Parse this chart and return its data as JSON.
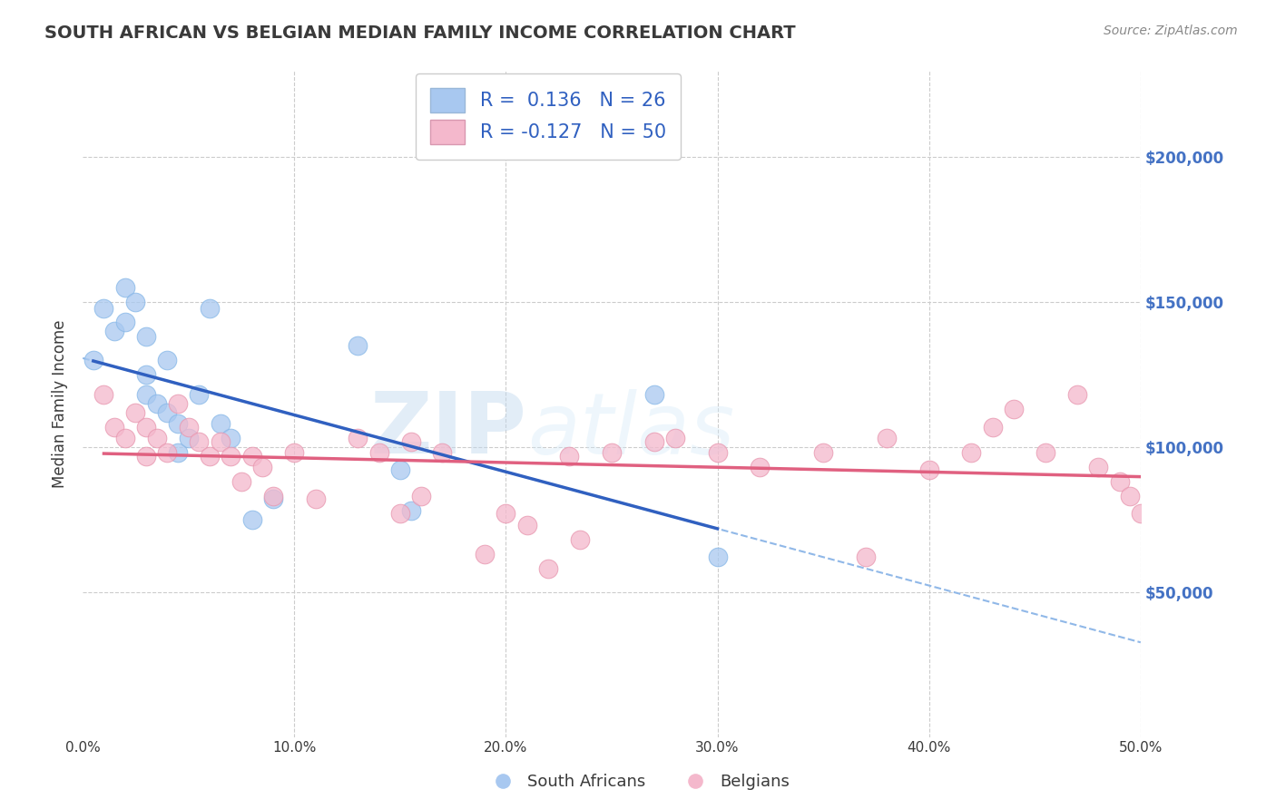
{
  "title": "SOUTH AFRICAN VS BELGIAN MEDIAN FAMILY INCOME CORRELATION CHART",
  "source": "Source: ZipAtlas.com",
  "ylabel": "Median Family Income",
  "xlim": [
    0.0,
    0.5
  ],
  "ylim": [
    0,
    230000
  ],
  "yticks": [
    0,
    50000,
    100000,
    150000,
    200000
  ],
  "ytick_labels": [
    "",
    "$50,000",
    "$100,000",
    "$150,000",
    "$200,000"
  ],
  "xtick_labels": [
    "0.0%",
    "10.0%",
    "20.0%",
    "30.0%",
    "40.0%",
    "50.0%"
  ],
  "xticks": [
    0.0,
    0.1,
    0.2,
    0.3,
    0.4,
    0.5
  ],
  "r_blue": 0.136,
  "n_blue": 26,
  "r_pink": -0.127,
  "n_pink": 50,
  "blue_color": "#a8c8f0",
  "pink_color": "#f4b8cc",
  "blue_line_color": "#3060c0",
  "pink_line_color": "#e06080",
  "blue_dash_color": "#90b8e8",
  "title_color": "#3a3a3a",
  "source_color": "#888888",
  "blue_scatter_x": [
    0.005,
    0.01,
    0.015,
    0.02,
    0.02,
    0.025,
    0.03,
    0.03,
    0.03,
    0.035,
    0.04,
    0.04,
    0.045,
    0.045,
    0.05,
    0.055,
    0.06,
    0.065,
    0.07,
    0.08,
    0.09,
    0.13,
    0.15,
    0.155,
    0.27,
    0.3
  ],
  "blue_scatter_y": [
    130000,
    148000,
    140000,
    155000,
    143000,
    150000,
    138000,
    125000,
    118000,
    115000,
    130000,
    112000,
    108000,
    98000,
    103000,
    118000,
    148000,
    108000,
    103000,
    75000,
    82000,
    135000,
    92000,
    78000,
    118000,
    62000
  ],
  "pink_scatter_x": [
    0.01,
    0.015,
    0.02,
    0.025,
    0.03,
    0.03,
    0.035,
    0.04,
    0.045,
    0.05,
    0.055,
    0.06,
    0.065,
    0.07,
    0.075,
    0.08,
    0.085,
    0.09,
    0.1,
    0.11,
    0.13,
    0.14,
    0.15,
    0.155,
    0.16,
    0.17,
    0.19,
    0.2,
    0.21,
    0.22,
    0.23,
    0.235,
    0.25,
    0.27,
    0.28,
    0.3,
    0.32,
    0.35,
    0.37,
    0.38,
    0.4,
    0.42,
    0.43,
    0.44,
    0.455,
    0.47,
    0.48,
    0.49,
    0.495,
    0.5
  ],
  "pink_scatter_y": [
    118000,
    107000,
    103000,
    112000,
    107000,
    97000,
    103000,
    98000,
    115000,
    107000,
    102000,
    97000,
    102000,
    97000,
    88000,
    97000,
    93000,
    83000,
    98000,
    82000,
    103000,
    98000,
    77000,
    102000,
    83000,
    98000,
    63000,
    77000,
    73000,
    58000,
    97000,
    68000,
    98000,
    102000,
    103000,
    98000,
    93000,
    98000,
    62000,
    103000,
    92000,
    98000,
    107000,
    113000,
    98000,
    118000,
    93000,
    88000,
    83000,
    77000
  ],
  "watermark_zip": "ZIP",
  "watermark_atlas": "atlas",
  "background_color": "#ffffff",
  "grid_color": "#cccccc"
}
